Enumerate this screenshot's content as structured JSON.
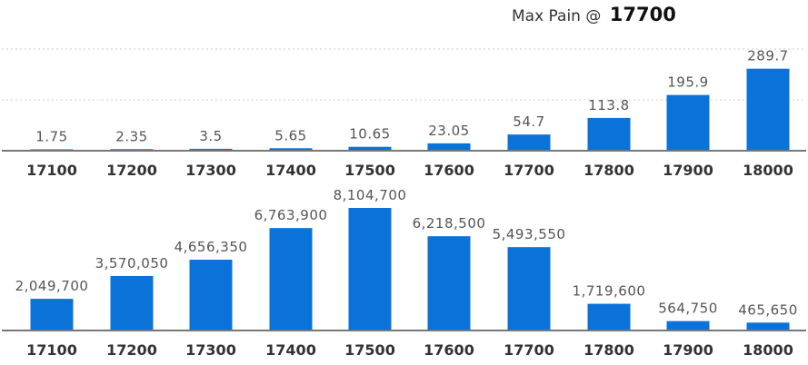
{
  "title": {
    "prefix": "Max Pain @",
    "strike": "17700"
  },
  "colors": {
    "bar": "#0b72d9",
    "axis": "#777777",
    "grid": "#cccccc",
    "value_label": "#555555",
    "tick_label": "#333333"
  },
  "chart_data": [
    {
      "type": "bar",
      "title": "",
      "xlabel": "",
      "ylabel": "",
      "grid": true,
      "ylim": [
        0,
        360
      ],
      "categories": [
        "17100",
        "17200",
        "17300",
        "17400",
        "17500",
        "17600",
        "17700",
        "17800",
        "17900",
        "18000"
      ],
      "values": [
        1.75,
        2.35,
        3.5,
        5.65,
        10.65,
        23.05,
        54.7,
        113.8,
        195.9,
        289.7
      ],
      "value_labels": [
        "1.75",
        "2.35",
        "3.5",
        "5.65",
        "10.65",
        "23.05",
        "54.7",
        "113.8",
        "195.9",
        "289.7"
      ]
    },
    {
      "type": "bar",
      "title": "",
      "xlabel": "",
      "ylabel": "",
      "grid": false,
      "ylim": [
        0,
        8104700
      ],
      "categories": [
        "17100",
        "17200",
        "17300",
        "17400",
        "17500",
        "17600",
        "17700",
        "17800",
        "17900",
        "18000"
      ],
      "values": [
        2049700,
        3570050,
        4656350,
        6763900,
        8104700,
        6218500,
        5493550,
        1719600,
        564750,
        465650
      ],
      "value_labels": [
        "2,049,700",
        "3,570,050",
        "4,656,350",
        "6,763,900",
        "8,104,700",
        "6,218,500",
        "5,493,550",
        "1,719,600",
        "564,750",
        "465,650"
      ]
    }
  ]
}
